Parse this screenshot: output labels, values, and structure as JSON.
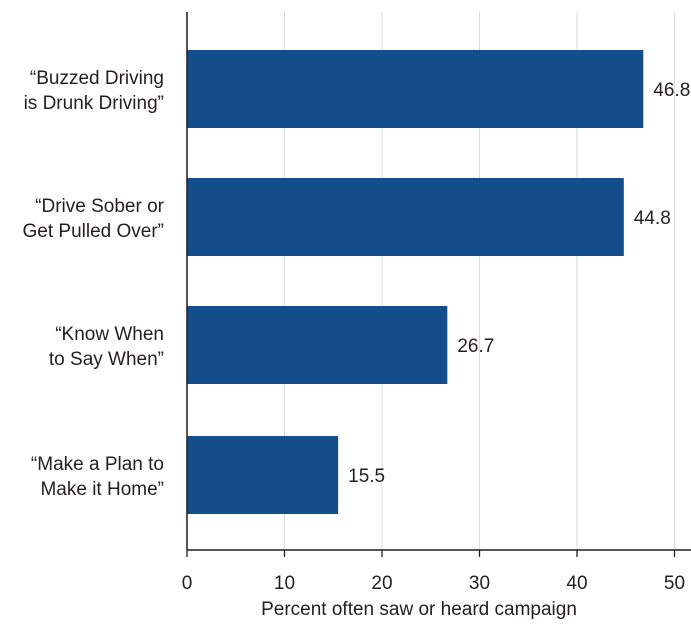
{
  "chart_data": {
    "type": "bar",
    "orientation": "horizontal",
    "categories": [
      [
        "“Buzzed Driving",
        "is Drunk Driving”"
      ],
      [
        "“Drive Sober or",
        "Get Pulled Over”"
      ],
      [
        "“Know When",
        "to Say When”"
      ],
      [
        "“Make a Plan to",
        "Make it Home”"
      ]
    ],
    "values": [
      46.8,
      44.8,
      26.7,
      15.5
    ],
    "data_labels": [
      "46.8",
      "44.8",
      "26.7",
      "15.5"
    ],
    "xlabel": "Percent often saw or heard campaign",
    "xlim": [
      0,
      52
    ],
    "xticks": [
      0,
      10,
      20,
      30,
      40,
      50
    ],
    "grid": true,
    "bar_color": "#154c8a",
    "grid_color": "#d9d9d9",
    "axis_color": "#231f20"
  }
}
